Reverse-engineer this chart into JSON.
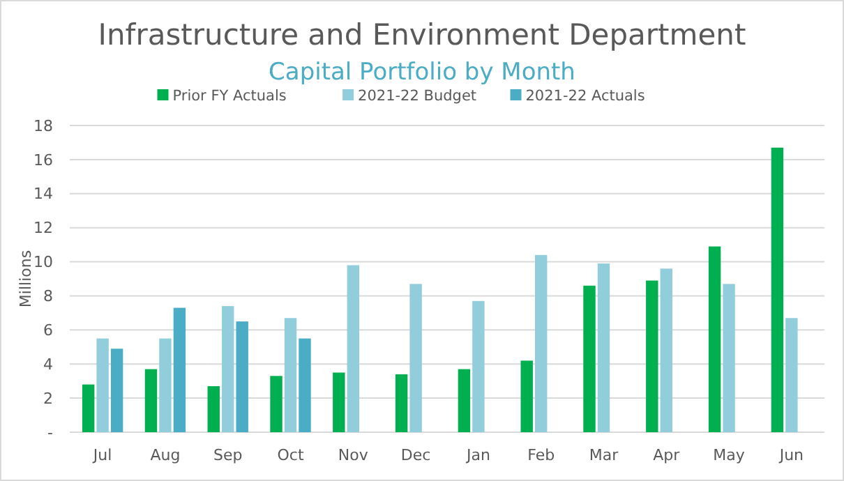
{
  "chart_data": {
    "type": "bar",
    "title": "Infrastructure and Environment Department",
    "subtitle": "Capital Portfolio by Month",
    "ylabel": "Millions",
    "categories": [
      "Jul",
      "Aug",
      "Sep",
      "Oct",
      "Nov",
      "Dec",
      "Jan",
      "Feb",
      "Mar",
      "Apr",
      "May",
      "Jun"
    ],
    "series": [
      {
        "name": "Prior FY Actuals",
        "color": "#00b050",
        "values": [
          2.8,
          3.7,
          2.7,
          3.3,
          3.5,
          3.4,
          3.7,
          4.2,
          8.6,
          8.9,
          10.9,
          16.7
        ]
      },
      {
        "name": "2021-22 Budget",
        "color": "#92cddc",
        "values": [
          5.5,
          5.5,
          7.4,
          6.7,
          9.8,
          8.7,
          7.7,
          10.4,
          9.9,
          9.6,
          8.7,
          6.7
        ]
      },
      {
        "name": "2021-22 Actuals",
        "color": "#4bacc6",
        "values": [
          4.9,
          7.3,
          6.5,
          5.5,
          null,
          null,
          null,
          null,
          null,
          null,
          null,
          null
        ]
      }
    ],
    "ylim": [
      0,
      18
    ],
    "yticks": [
      {
        "value": 0,
        "label": "-"
      },
      2,
      4,
      6,
      8,
      10,
      12,
      14,
      16,
      18
    ],
    "grid": "y",
    "legend": "top"
  }
}
